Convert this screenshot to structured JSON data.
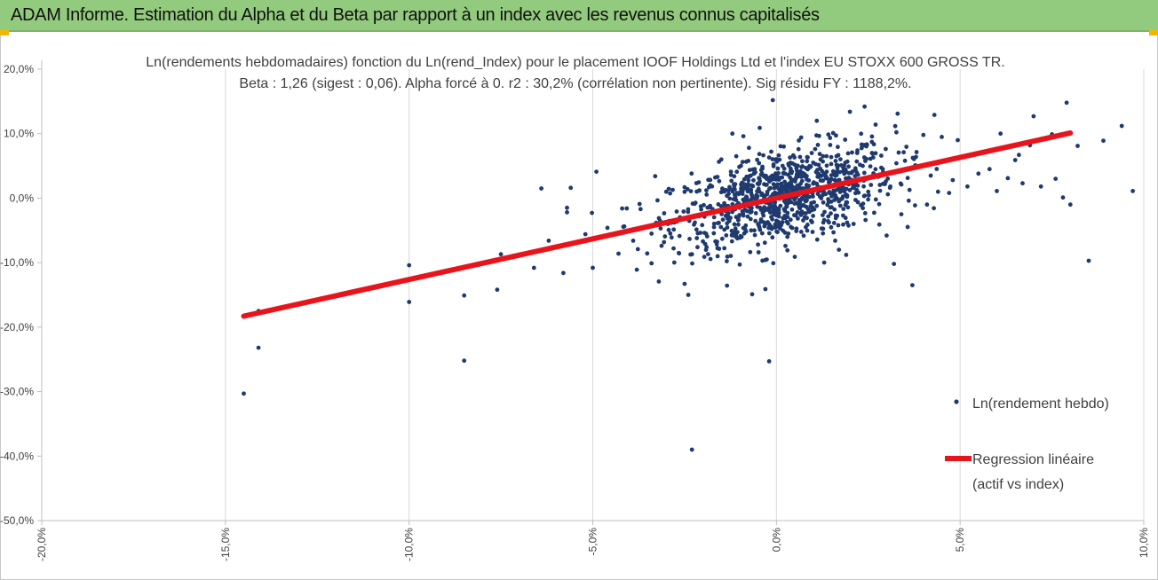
{
  "banner": {
    "title": "ADAM Informe. Estimation du Alpha et du Beta par rapport à un index avec les revenus connus capitalisés",
    "background": "#93cb7e"
  },
  "chart_data": {
    "type": "scatter",
    "title_line1": "Ln(rendements hebdomadaires) fonction du Ln(rend_Index) pour le placement IOOF Holdings Ltd et l'index EU STOXX 600 GROSS TR.",
    "title_line2": "Beta : 1,26 (sigest : 0,06). Alpha forcé à 0. r2 : 30,2% (corrélation non pertinente). Sig résidu FY : 1188,2%.",
    "xlim": [
      -0.2,
      0.1
    ],
    "ylim": [
      -0.5,
      0.2
    ],
    "x_ticks": [
      -0.2,
      -0.15,
      -0.1,
      -0.05,
      0.0,
      0.05,
      0.1
    ],
    "x_tick_labels": [
      "-20,0%",
      "-15,0%",
      "-10,0%",
      "-5,0%",
      "0,0%",
      "5,0%",
      "10,0%"
    ],
    "y_ticks": [
      0.2,
      0.1,
      0.0,
      -0.1,
      -0.2,
      -0.3,
      -0.4,
      -0.5
    ],
    "y_tick_labels": [
      "20,0%",
      "10,0%",
      "0,0%",
      "-10,0%",
      "-20,0%",
      "-30,0%",
      "-40,0%",
      "-50,0%"
    ],
    "grid": "vertical",
    "legend_position": "right",
    "series": [
      {
        "name": "Ln(rendement hebdo)",
        "kind": "points",
        "color": "#1f3a6e",
        "points": [
          [
            -0.145,
            -0.303
          ],
          [
            -0.141,
            -0.232
          ],
          [
            -0.141,
            -0.175
          ],
          [
            -0.1,
            -0.104
          ],
          [
            -0.1,
            -0.161
          ],
          [
            -0.085,
            -0.151
          ],
          [
            -0.085,
            -0.252
          ],
          [
            -0.076,
            -0.142
          ],
          [
            -0.075,
            -0.087
          ],
          [
            -0.066,
            -0.108
          ],
          [
            -0.064,
            0.015
          ],
          [
            -0.062,
            -0.066
          ],
          [
            -0.058,
            -0.116
          ],
          [
            -0.057,
            -0.015
          ],
          [
            -0.057,
            -0.022
          ],
          [
            -0.056,
            0.016
          ],
          [
            -0.052,
            -0.056
          ],
          [
            -0.05,
            -0.108
          ],
          [
            -0.049,
            0.041
          ],
          [
            -0.046,
            -0.046
          ],
          [
            -0.043,
            -0.086
          ],
          [
            -0.042,
            -0.016
          ],
          [
            -0.039,
            -0.066
          ],
          [
            -0.038,
            -0.111
          ],
          [
            -0.037,
            -0.017
          ],
          [
            -0.034,
            -0.055
          ],
          [
            -0.034,
            -0.101
          ],
          [
            -0.033,
            0.034
          ],
          [
            -0.032,
            -0.031
          ],
          [
            -0.03,
            0.01
          ],
          [
            -0.028,
            -0.078
          ],
          [
            -0.027,
            -0.035
          ],
          [
            -0.025,
            0.017
          ],
          [
            -0.025,
            -0.133
          ],
          [
            -0.024,
            -0.15
          ],
          [
            -0.023,
            -0.087
          ],
          [
            -0.023,
            -0.39
          ],
          [
            -0.021,
            -0.028
          ],
          [
            -0.019,
            -0.076
          ],
          [
            -0.018,
            0.02
          ],
          [
            -0.017,
            -0.045
          ],
          [
            -0.016,
            -0.09
          ],
          [
            -0.015,
            0.06
          ],
          [
            -0.014,
            -0.012
          ],
          [
            -0.012,
            0.1
          ],
          [
            -0.011,
            -0.06
          ],
          [
            -0.01,
            -0.103
          ],
          [
            -0.009,
            0.096
          ],
          [
            -0.008,
            -0.02
          ],
          [
            -0.007,
            0.035
          ],
          [
            -0.006,
            -0.05
          ],
          [
            -0.005,
            -0.072
          ],
          [
            -0.004,
            0.005
          ],
          [
            -0.003,
            -0.141
          ],
          [
            -0.003,
            -0.096
          ],
          [
            -0.002,
            -0.253
          ],
          [
            -0.002,
            0.063
          ],
          [
            -0.001,
            0.152
          ],
          [
            0.0,
            -0.035
          ],
          [
            0.001,
            0.012
          ],
          [
            0.002,
            0.08
          ],
          [
            0.003,
            -0.06
          ],
          [
            0.004,
            0.024
          ],
          [
            0.005,
            -0.091
          ],
          [
            0.006,
            0.04
          ],
          [
            0.007,
            -0.022
          ],
          [
            0.008,
            -0.045
          ],
          [
            0.009,
            0.002
          ],
          [
            0.01,
            0.055
          ],
          [
            0.011,
            0.12
          ],
          [
            0.012,
            0.06
          ],
          [
            0.013,
            -0.1
          ],
          [
            0.014,
            0.03
          ],
          [
            0.015,
            -0.014
          ],
          [
            0.016,
            -0.066
          ],
          [
            0.017,
            -0.08
          ],
          [
            0.018,
            0.02
          ],
          [
            0.019,
            -0.088
          ],
          [
            0.02,
            0.134
          ],
          [
            0.021,
            -0.04
          ],
          [
            0.022,
            0.07
          ],
          [
            0.023,
            -0.011
          ],
          [
            0.024,
            0.142
          ],
          [
            0.025,
            0.01
          ],
          [
            0.026,
            0.07
          ],
          [
            0.027,
            0.114
          ],
          [
            0.028,
            -0.041
          ],
          [
            0.029,
            0.04
          ],
          [
            0.03,
            -0.058
          ],
          [
            0.031,
            0.018
          ],
          [
            0.032,
            -0.102
          ],
          [
            0.033,
            0.131
          ],
          [
            0.034,
            -0.025
          ],
          [
            0.035,
            0.058
          ],
          [
            0.036,
            -0.004
          ],
          [
            0.037,
            -0.135
          ],
          [
            0.038,
            0.064
          ],
          [
            0.04,
            0.098
          ],
          [
            0.041,
            -0.01
          ],
          [
            0.042,
            0.035
          ],
          [
            0.043,
            0.129
          ],
          [
            0.044,
            0.01
          ],
          [
            0.045,
            0.095
          ],
          [
            0.047,
            0.008
          ],
          [
            0.048,
            0.028
          ],
          [
            0.05,
            0.063
          ],
          [
            0.052,
            0.018
          ],
          [
            0.055,
            0.038
          ],
          [
            0.058,
            0.045
          ],
          [
            0.06,
            0.011
          ],
          [
            0.061,
            0.1
          ],
          [
            0.063,
            0.031
          ],
          [
            0.065,
            0.059
          ],
          [
            0.066,
            0.067
          ],
          [
            0.067,
            0.023
          ],
          [
            0.069,
            0.082
          ],
          [
            0.07,
            0.127
          ],
          [
            0.072,
            0.018
          ],
          [
            0.075,
            0.099
          ],
          [
            0.076,
            0.03
          ],
          [
            0.078,
            0.001
          ],
          [
            0.079,
            0.148
          ],
          [
            0.08,
            -0.01
          ],
          [
            0.082,
            0.081
          ],
          [
            0.085,
            -0.097
          ],
          [
            0.089,
            0.089
          ],
          [
            0.094,
            0.112
          ],
          [
            0.097,
            0.011
          ]
        ],
        "cluster": {
          "n": 900,
          "x_center": 0.002,
          "x_sd": 0.015,
          "slope": 1.26,
          "resid_sd": 0.035
        }
      },
      {
        "name": "Regression linéaire\n(actif vs index)",
        "kind": "line",
        "color": "#e8141c",
        "x": [
          -0.145,
          0.08
        ],
        "y": [
          -0.183,
          0.101
        ]
      }
    ]
  },
  "legend": {
    "points_label": "Ln(rendement hebdo)",
    "line_label_1": "Regression linéaire",
    "line_label_2": "(actif vs index)"
  }
}
